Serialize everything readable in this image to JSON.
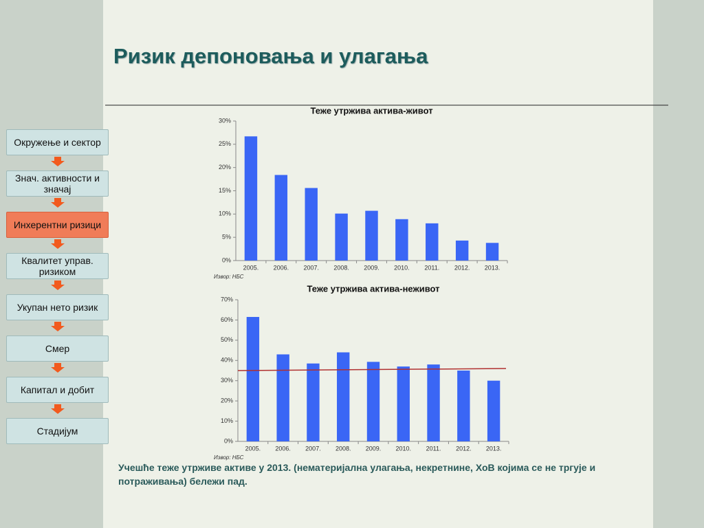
{
  "title": "Ризик депоновања и улагања",
  "steps": [
    "Окружење и сектор",
    "Знач. активности и значај",
    "Инхерентни ризици",
    "Квалитет управ. ризиком",
    "Укупан нето ризик",
    "Смер",
    "Капитал и добит",
    "Стадијум"
  ],
  "active_step": 2,
  "note": "Учешће теже утрживе активе  у 2013. (нематеријална улагања, некретнине, ХоВ којима се не тргује и потраживања) бележи пад.",
  "chart_data": [
    {
      "type": "bar",
      "title": "Теже утржива  актива-живот",
      "source": "Извор: НБС",
      "categories": [
        "2005.",
        "2006.",
        "2007.",
        "2008.",
        "2009.",
        "2010.",
        "2011.",
        "2012.",
        "2013."
      ],
      "values": [
        26.7,
        18.4,
        15.6,
        10.1,
        10.7,
        8.9,
        8.0,
        4.3,
        3.8
      ],
      "color": "#3a66f5",
      "ylim": [
        0,
        30
      ],
      "yticks": [
        {
          "value": 0,
          "label": "0%"
        },
        {
          "value": 5,
          "label": "5%"
        },
        {
          "value": 10,
          "label": "10%"
        },
        {
          "value": 15,
          "label": "15%"
        },
        {
          "value": 20,
          "label": "20%"
        },
        {
          "value": 25,
          "label": "25%"
        },
        {
          "value": 30,
          "label": "30%"
        }
      ]
    },
    {
      "type": "bar",
      "title": "Теже утржива  актива-неживот",
      "source": "Извор: НБС",
      "categories": [
        "2005.",
        "2006.",
        "2007.",
        "2008.",
        "2009.",
        "2010.",
        "2011.",
        "2012.",
        "2013."
      ],
      "values": [
        61.5,
        43,
        38.5,
        44,
        39.3,
        37,
        38,
        35,
        30
      ],
      "color": "#3a66f5",
      "ylim": [
        0,
        70
      ],
      "yticks": [
        {
          "value": 0,
          "label": "0%"
        },
        {
          "value": 10,
          "label": "10%"
        },
        {
          "value": 20,
          "label": "20%"
        },
        {
          "value": 30,
          "label": "30%"
        },
        {
          "value": 40,
          "label": "40%"
        },
        {
          "value": 50,
          "label": "50%"
        },
        {
          "value": 60,
          "label": "60%"
        },
        {
          "value": 70,
          "label": "70%"
        }
      ],
      "trend": {
        "color": "#b03030",
        "values": [
          35,
          36
        ]
      }
    }
  ]
}
